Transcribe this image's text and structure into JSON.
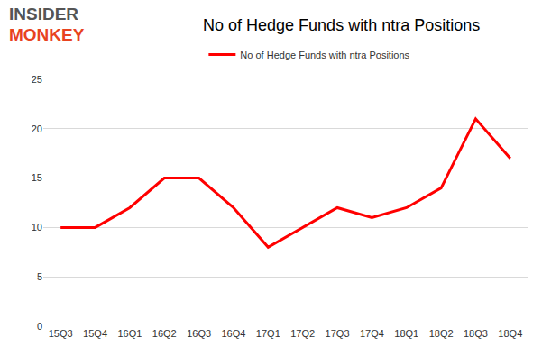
{
  "chart_data": {
    "type": "line",
    "title": "No of Hedge Funds with ntra Positions",
    "annotations": [
      "INSIDER",
      "MONKEY"
    ],
    "categories": [
      "15Q3",
      "15Q4",
      "16Q1",
      "16Q2",
      "16Q3",
      "16Q4",
      "17Q1",
      "17Q2",
      "17Q3",
      "17Q4",
      "18Q1",
      "18Q2",
      "18Q3",
      "18Q4"
    ],
    "series": [
      {
        "name": "No of Hedge Funds with ntra Positions",
        "color": "#ff0000",
        "values": [
          10,
          10,
          12,
          15,
          15,
          12,
          8,
          10,
          12,
          11,
          12,
          14,
          21,
          17
        ]
      }
    ],
    "ylim": [
      0,
      25
    ],
    "yticks": [
      0,
      5,
      10,
      15,
      20,
      25
    ],
    "grid": true,
    "legend": "top"
  }
}
